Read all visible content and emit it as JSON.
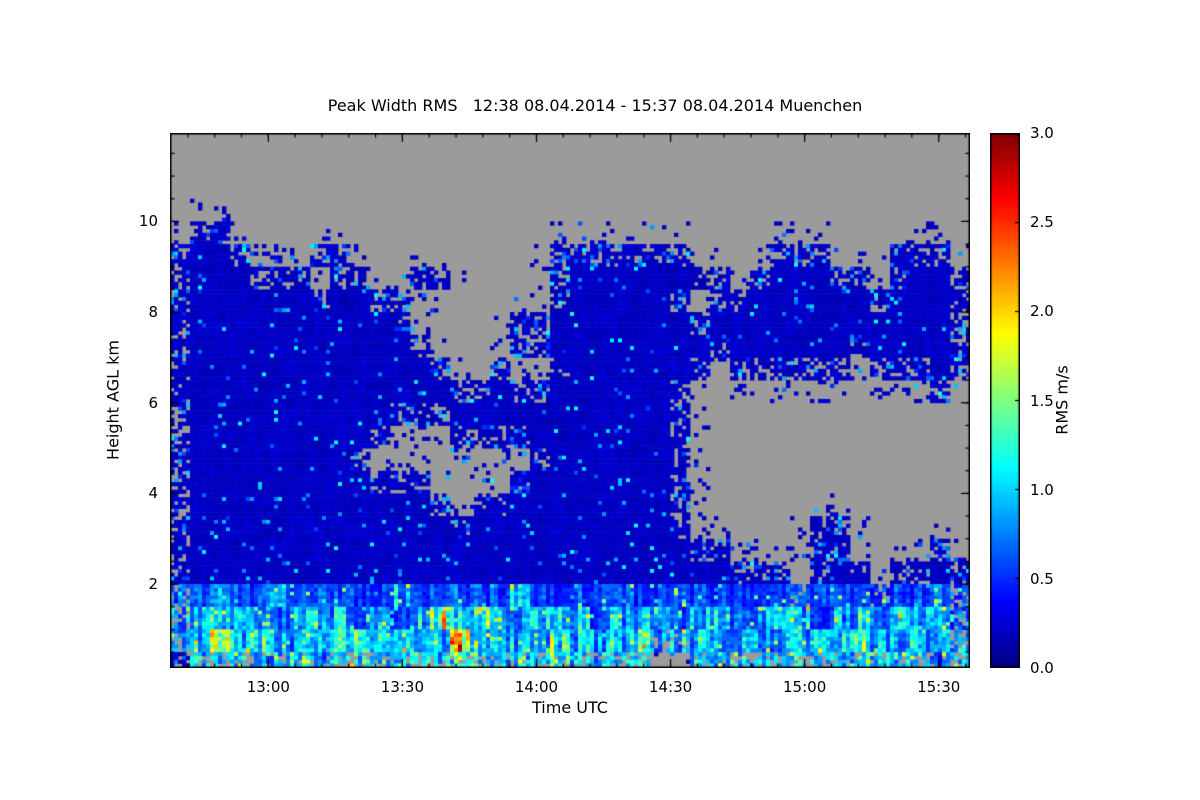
{
  "page": {
    "background": "#ffffff"
  },
  "chart_data": {
    "type": "heatmap",
    "title": "Peak Width RMS   12:38 08.04.2014 - 15:37 08.04.2014 Muenchen",
    "variable": "Peak Width RMS",
    "time_start": "12:38",
    "time_end": "15:37",
    "date": "08.04.2014",
    "station": "Muenchen",
    "xlabel": "Time UTC",
    "ylabel": "Height AGL km",
    "colormap": "jet",
    "no_data_color": "#9b9b9b",
    "frame_color": "#000000",
    "duration_min": 179,
    "y_range_km": [
      0.15,
      11.95
    ],
    "x_ticks": [
      {
        "label": "13:00",
        "min": 22
      },
      {
        "label": "13:30",
        "min": 52
      },
      {
        "label": "14:00",
        "min": 82
      },
      {
        "label": "14:30",
        "min": 112
      },
      {
        "label": "15:00",
        "min": 142
      },
      {
        "label": "15:30",
        "min": 172
      }
    ],
    "x_minor_start_min": 4,
    "x_minor_step_min": 6,
    "y_ticks": [
      {
        "label": "2",
        "km": 2
      },
      {
        "label": "4",
        "km": 4
      },
      {
        "label": "6",
        "km": 6
      },
      {
        "label": "8",
        "km": 8
      },
      {
        "label": "10",
        "km": 10
      }
    ],
    "y_minor_start_km": 0.5,
    "y_minor_step_km": 0.5,
    "colorbar": {
      "label": "RMS m/s",
      "min": 0,
      "max": 3,
      "ticks": [
        {
          "label": "3.0",
          "value": 3.0
        },
        {
          "label": "2.5",
          "value": 2.5
        },
        {
          "label": "2.0",
          "value": 2.0
        },
        {
          "label": "1.5",
          "value": 1.5
        },
        {
          "label": "1.0",
          "value": 1.0
        },
        {
          "label": "0.5",
          "value": 0.5
        },
        {
          "label": "0.0",
          "value": 0.0
        }
      ]
    },
    "grid": {
      "comment": "Coarse RMS field (m/s), 40 time cols x 24 half-km rows, top row = 11.5-12 km. '.' = no data (gray).",
      "cols": 40,
      "rows": 24,
      "height_top_km": 12,
      "height_bottom_km": 0,
      "value_map": {
        ".": null,
        "b": 0.2,
        "c": 0.55,
        "d": 0.85,
        "e": 1.15,
        "f": 1.5
      },
      "rows_top_to_bottom": [
        "........................................",
        "........................................",
        "........................................",
        "........................................",
        ".bb.....................................",
        "bbbb...bb..........bbbbbbb....bbb...bbb.",
        "bbbbbbb.bb..bb.....bbbbbbbbb.bbbbbb.bbbb",
        "bbbbbbbbbbbb.......bbbbbbb.bbbbbbbbbbbbb",
        "bbbbbbbbbbbb.....bbbbbbbbbbbbbbbbbbbbbbb",
        "bbbbbbbbbbbbb....bbbbbbbbbbbbbbbbbbbbbbb",
        "bbbbbbbbbbbbbb..b..bbbbbbbb.bbbbbb.bbbbb",
        "bbbbbbbbbbbbbbbbbbbbbbbbbb............b.",
        "bbbbbbbbbbbbbbbbbbbbbbbbbb..............",
        "bbbbbbbbbbb...bbbbbbbbbbbb..............",
        "bbbbbbbbbb........bbbbbbbb..............",
        "bbbbbbbbbbbbb....bbbbbbbbb..............",
        "bbbbbbbbbbbbbb.bbbbbbbbbbb..............",
        "bbbbbbbbbbbbbbbbbbbbbbbbbb......bb......",
        "bbbbbbbbbbbbbbbbbbbbbbbbbbbb....bb....b.",
        "bbbbbbbbbbbbbbbbbbbbbbbbbbbbbbb.bbb.bbbb",
        "ccdccdcccccdcccccdcccccccccccccccccccccc",
        "ddeddcdddcdcdfeedddddcdddcddcdddcddcdddc",
        "ddfdedddeeddddfedddedddeddddddddddeddddd",
        "bdedddeddeddedeedddedddd..ddeddddddeddcd"
      ]
    }
  }
}
